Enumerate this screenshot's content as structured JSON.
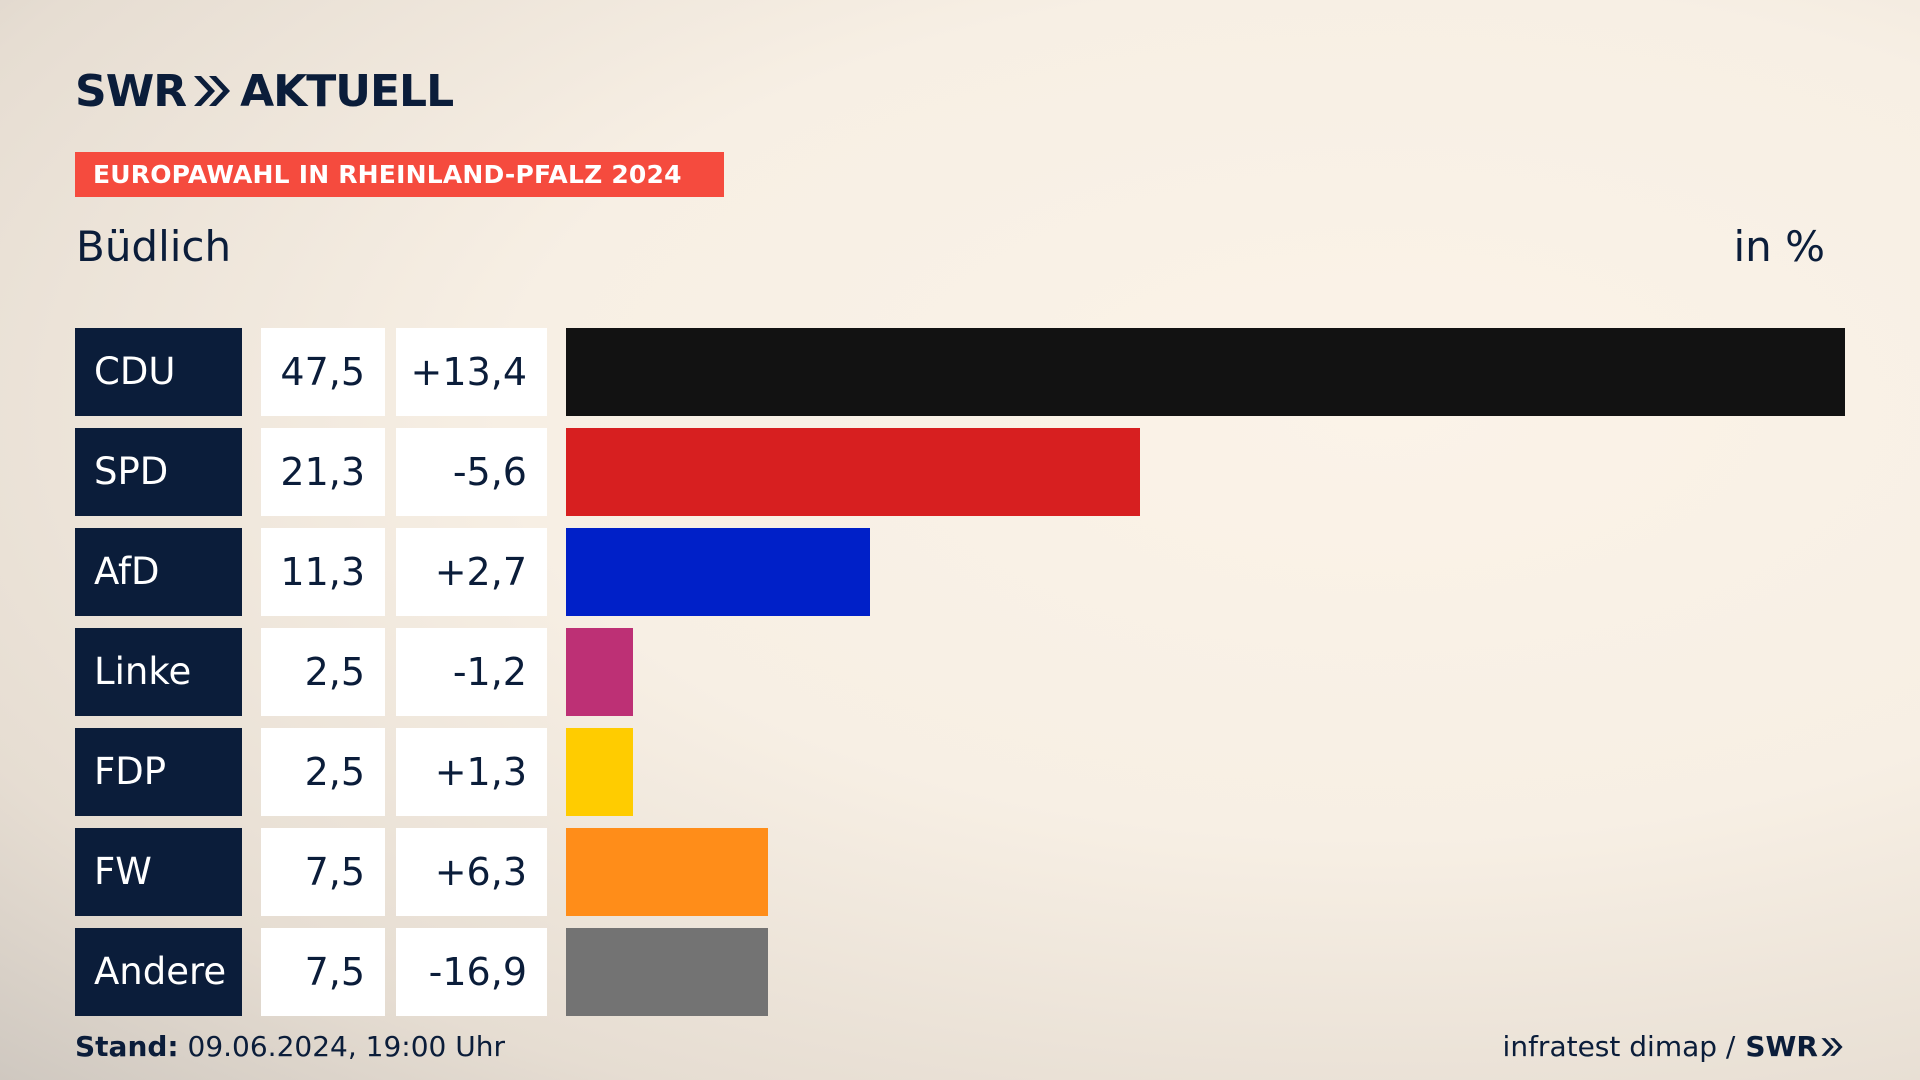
{
  "header": {
    "logo_text_left": "SWR",
    "logo_text_right": "AKTUELL",
    "banner": "EUROPAWAHL IN RHEINLAND-PFALZ 2024",
    "region": "Büdlich",
    "unit": "in %"
  },
  "chart_data": {
    "type": "bar",
    "orientation": "horizontal",
    "categories": [
      "CDU",
      "SPD",
      "AfD",
      "Linke",
      "FDP",
      "FW",
      "Andere"
    ],
    "values": [
      47.5,
      21.3,
      11.3,
      2.5,
      2.5,
      7.5,
      7.5
    ],
    "value_labels": [
      "47,5",
      "21,3",
      "11,3",
      "2,5",
      "2,5",
      "7,5",
      "7,5"
    ],
    "differences": [
      "+13,4",
      "-5,6",
      "+2,7",
      "-1,2",
      "+1,3",
      "+6,3",
      "-16,9"
    ],
    "colors": [
      "#121212",
      "#d71f20",
      "#0020c8",
      "#bd3075",
      "#ffcc00",
      "#ff8d19",
      "#737373"
    ],
    "xlim": [
      0,
      47.5
    ],
    "grid": false
  },
  "footer": {
    "stand_label": "Stand:",
    "stand_value": " 09.06.2024, 19:00 Uhr",
    "source": "infratest dimap /",
    "brand": "SWR"
  }
}
